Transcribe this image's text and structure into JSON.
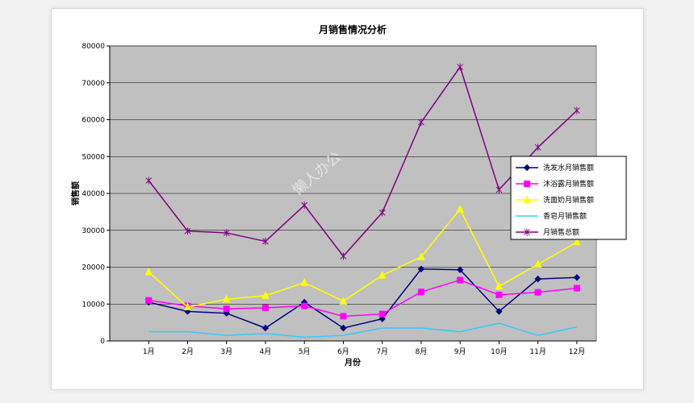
{
  "chart_data": {
    "type": "line",
    "title": "月销售情况分析",
    "xlabel": "月份",
    "ylabel": "销售额",
    "categories": [
      "1月",
      "2月",
      "3月",
      "4月",
      "5月",
      "6月",
      "7月",
      "8月",
      "9月",
      "10月",
      "11月",
      "12月"
    ],
    "ylim": [
      0,
      80000
    ],
    "yticks": [
      0,
      10000,
      20000,
      30000,
      40000,
      50000,
      60000,
      70000,
      80000
    ],
    "grid": true,
    "legend_position": "right",
    "series": [
      {
        "name": "洗发水月销售额",
        "color": "#000080",
        "marker": "diamond",
        "values": [
          10500,
          8000,
          7500,
          3500,
          10500,
          3500,
          6000,
          19500,
          19300,
          8000,
          16800,
          17200
        ]
      },
      {
        "name": "沐浴露月销售额",
        "color": "#ff00ff",
        "marker": "square",
        "values": [
          11000,
          9500,
          8700,
          9000,
          9500,
          6700,
          7300,
          13300,
          16500,
          12500,
          13200,
          14300
        ]
      },
      {
        "name": "洗面奶月销售额",
        "color": "#ffff00",
        "marker": "triangle",
        "values": [
          18700,
          9200,
          11300,
          12300,
          15800,
          10800,
          17800,
          22800,
          35700,
          14800,
          20800,
          26800
        ]
      },
      {
        "name": "香皂月销售额",
        "color": "#33ccff",
        "marker": "none",
        "values": [
          2500,
          2500,
          1500,
          2000,
          1000,
          1500,
          3500,
          3500,
          2500,
          4800,
          1500,
          3800
        ]
      },
      {
        "name": "月销售总额",
        "color": "#800080",
        "marker": "star",
        "values": [
          43500,
          29800,
          29300,
          27000,
          36800,
          23000,
          34800,
          59300,
          74300,
          41000,
          52500,
          62500
        ]
      }
    ]
  },
  "watermark": "懒人办公"
}
